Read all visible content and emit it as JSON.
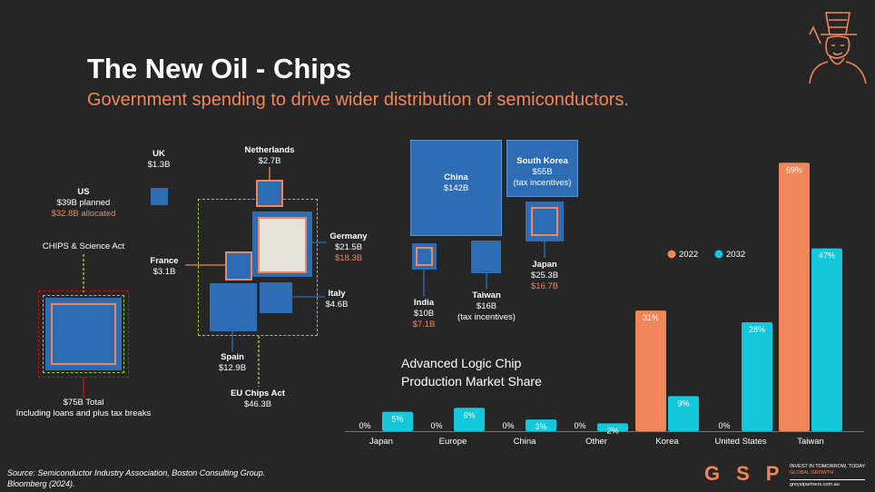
{
  "header": {
    "title": "The New Oil - Chips",
    "subtitle": "Government spending to drive wider distribution of semiconductors."
  },
  "us": {
    "name": "US",
    "planned": "$39B planned",
    "allocated": "$32.8B allocated",
    "act": "CHIPS & Science Act",
    "total": "$75B Total",
    "total_note": "Including loans and plus tax breaks"
  },
  "uk": {
    "name": "UK",
    "value": "$1.3B"
  },
  "eu": {
    "netherlands": {
      "name": "Netherlands",
      "value": "$2.7B"
    },
    "germany": {
      "name": "Germany",
      "value": "$21.5B",
      "allocated": "$18.3B"
    },
    "france": {
      "name": "France",
      "value": "$3.1B"
    },
    "italy": {
      "name": "Italy",
      "value": "$4.6B"
    },
    "spain": {
      "name": "Spain",
      "value": "$12.9B"
    },
    "act": "EU Chips Act",
    "act_value": "$46.3B"
  },
  "asia": {
    "china": {
      "name": "China",
      "value": "$142B"
    },
    "south_korea": {
      "name": "South Korea",
      "value": "$55B",
      "note": "(tax incentives)"
    },
    "japan": {
      "name": "Japan",
      "value": "$25.3B",
      "allocated": "$16.7B"
    },
    "india": {
      "name": "India",
      "value": "$10B",
      "allocated": "$7.1B"
    },
    "taiwan": {
      "name": "Taiwan",
      "value": "$16B",
      "note": "(tax incentives)"
    }
  },
  "chart_data": {
    "type": "bar",
    "title": "Advanced Logic Chip Production Market Share",
    "title_lines": [
      "Advanced Logic Chip",
      "Production Market Share"
    ],
    "categories": [
      "Japan",
      "Europe",
      "China",
      "Other",
      "Korea",
      "United States",
      "Taiwan"
    ],
    "series": [
      {
        "name": "2022",
        "color": "#f0865a",
        "values": [
          0,
          0,
          0,
          0,
          31,
          0,
          69
        ]
      },
      {
        "name": "2032",
        "color": "#14c8dc",
        "values": [
          5,
          6,
          3,
          2,
          9,
          28,
          47
        ]
      }
    ],
    "ylim": [
      0,
      70
    ],
    "legend": "top-right",
    "grid": false
  },
  "footer": {
    "source_line1": "Source: Semiconductor Industry Association, Boston Consulting Group.",
    "source_line2": "Bloomberg (2024).",
    "logo": "GSP",
    "tagline1": "INVEST IN TOMORROW, TODAY",
    "tagline2": "GLOBAL GROWTH",
    "url": "greystpartners.com.au"
  },
  "colors": {
    "background": "#262626",
    "accent": "#f0865a",
    "box_blue": "#2e6db4",
    "teal": "#14c8dc",
    "eu_dash": "#9acd32",
    "us_red_dash": "#cc1111"
  }
}
